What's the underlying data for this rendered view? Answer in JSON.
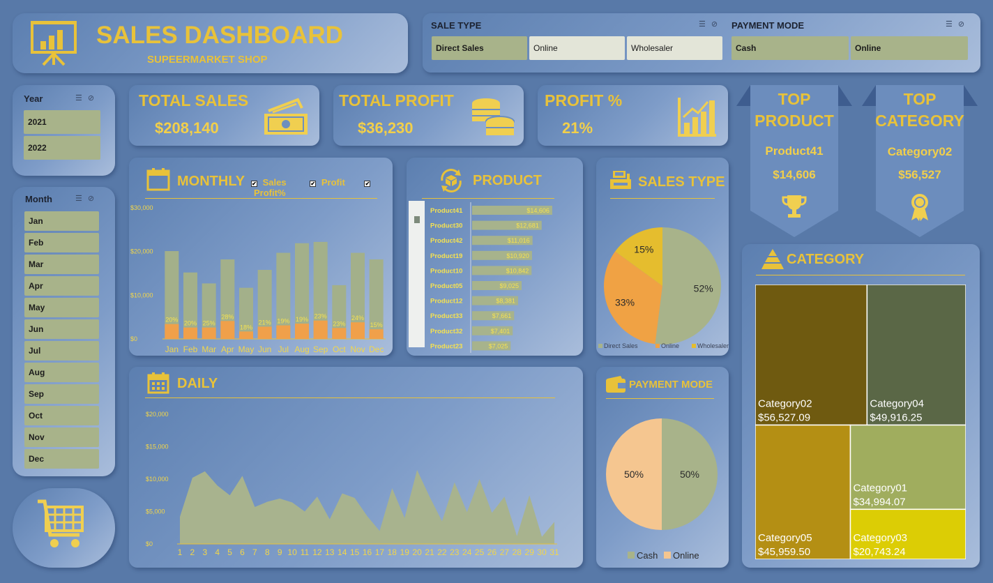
{
  "header": {
    "title": "SALES DASHBOARD",
    "subtitle": "SUPEERMARKET SHOP"
  },
  "filters": {
    "sale_type": {
      "label": "SALE TYPE",
      "options": [
        "Direct Sales",
        "Online",
        "Wholesaler"
      ],
      "selected": [
        "Direct Sales"
      ]
    },
    "payment_mode": {
      "label": "PAYMENT MODE",
      "options": [
        "Cash",
        "Online"
      ],
      "selected": [
        "Cash",
        "Online"
      ]
    },
    "year": {
      "label": "Year",
      "options": [
        "2021",
        "2022"
      ]
    },
    "month": {
      "label": "Month",
      "options": [
        "Jan",
        "Feb",
        "Mar",
        "Apr",
        "May",
        "Jun",
        "Jul",
        "Aug",
        "Sep",
        "Oct",
        "Nov",
        "Dec"
      ]
    }
  },
  "kpis": {
    "total_sales": {
      "label": "TOTAL SALES",
      "value": "$208,140"
    },
    "total_profit": {
      "label": "TOTAL PROFIT",
      "value": "$36,230"
    },
    "profit_pct": {
      "label": "PROFIT %",
      "value": "21%"
    }
  },
  "top_product": {
    "label_1": "TOP",
    "label_2": "PRODUCT",
    "name": "Product41",
    "value": "$14,606"
  },
  "top_category": {
    "label_1": "TOP",
    "label_2": "CATEGORY",
    "name": "Category02",
    "value": "$56,527"
  },
  "sections": {
    "monthly": "MONTHLY",
    "product": "PRODUCT",
    "sales_type": "SALES TYPE",
    "daily": "DAILY",
    "payment_mode": "PAYMENT MODE",
    "category": "CATEGORY"
  },
  "monthly_legend": [
    "Sales",
    "Profit",
    "Profit%"
  ],
  "colors": {
    "accent": "#e8c23a",
    "sales_bar": "#a3b08a",
    "profit_bar": "#f0a04a",
    "direct": "#a8b38a",
    "online": "#f0a244",
    "wholesaler": "#e5bd2e",
    "cash": "#a8b38a",
    "online_pay": "#f5c690"
  },
  "chart_data": [
    {
      "id": "monthly",
      "type": "bar",
      "categories": [
        "Jan",
        "Feb",
        "Mar",
        "Apr",
        "May",
        "Jun",
        "Jul",
        "Aug",
        "Sep",
        "Oct",
        "Nov",
        "Dec"
      ],
      "series": [
        {
          "name": "Sales",
          "values": [
            20100,
            15200,
            12700,
            18200,
            11700,
            15800,
            19700,
            21900,
            22200,
            12300,
            19700,
            18200
          ]
        },
        {
          "name": "Profit",
          "values": [
            3400,
            2600,
            2600,
            4100,
            1700,
            2800,
            3100,
            3500,
            4200,
            2500,
            3800,
            2200
          ]
        }
      ],
      "data_labels": [
        "20%",
        "20%",
        "25%",
        "28%",
        "18%",
        "21%",
        "19%",
        "19%",
        "23%",
        "23%",
        "24%",
        "15%"
      ],
      "ytick_labels": [
        "$0",
        "$10,000",
        "$20,000",
        "$30,000"
      ],
      "ylim": [
        0,
        30000
      ]
    },
    {
      "id": "product",
      "type": "bar",
      "orientation": "horizontal",
      "categories": [
        "Product41",
        "Product30",
        "Product42",
        "Product19",
        "Product10",
        "Product05",
        "Product12",
        "Product33",
        "Product32",
        "Product23"
      ],
      "values": [
        14606,
        12681,
        11016,
        10920,
        10842,
        9025,
        8381,
        7661,
        7401,
        7025
      ],
      "value_labels": [
        "$14,606",
        "$12,681",
        "$11,016",
        "$10,920",
        "$10,842",
        "$9,025",
        "$8,381",
        "$7,661",
        "$7,401",
        "$7,025"
      ]
    },
    {
      "id": "sales_type",
      "type": "pie",
      "labels": [
        "Direct Sales",
        "Online",
        "Wholesaler"
      ],
      "values": [
        52,
        33,
        15
      ],
      "value_labels": [
        "52%",
        "33%",
        "15%"
      ]
    },
    {
      "id": "daily",
      "type": "area",
      "x": [
        1,
        2,
        3,
        4,
        5,
        6,
        7,
        8,
        9,
        10,
        11,
        12,
        13,
        14,
        15,
        16,
        17,
        18,
        19,
        20,
        21,
        22,
        23,
        24,
        25,
        26,
        27,
        28,
        29,
        30,
        31
      ],
      "values": [
        4200,
        10200,
        11200,
        9000,
        7500,
        10500,
        5700,
        6500,
        7000,
        6400,
        5000,
        7300,
        3800,
        7800,
        7100,
        4300,
        2000,
        8600,
        4000,
        11400,
        7300,
        3500,
        9500,
        4900,
        10000,
        4800,
        7300,
        1200,
        7500,
        1100,
        3400
      ],
      "ytick_labels": [
        "$0",
        "$5,000",
        "$10,000",
        "$15,000",
        "$20,000"
      ],
      "ylim": [
        0,
        20000
      ]
    },
    {
      "id": "payment_mode",
      "type": "pie",
      "labels": [
        "Cash",
        "Online"
      ],
      "values": [
        50,
        50
      ],
      "value_labels": [
        "50%",
        "50%"
      ]
    },
    {
      "id": "category",
      "type": "treemap",
      "labels": [
        "Category02",
        "Category04",
        "Category05",
        "Category01",
        "Category03"
      ],
      "values": [
        56527.09,
        49916.25,
        45959.5,
        34994.07,
        20743.24
      ],
      "value_labels": [
        "$56,527.09",
        "$49,916.25",
        "$45,959.50",
        "$34,994.07",
        "$20,743.24"
      ],
      "colors": [
        "#6f5a10",
        "#5a6746",
        "#b48f14",
        "#a0ad5e",
        "#dccd05"
      ]
    }
  ]
}
